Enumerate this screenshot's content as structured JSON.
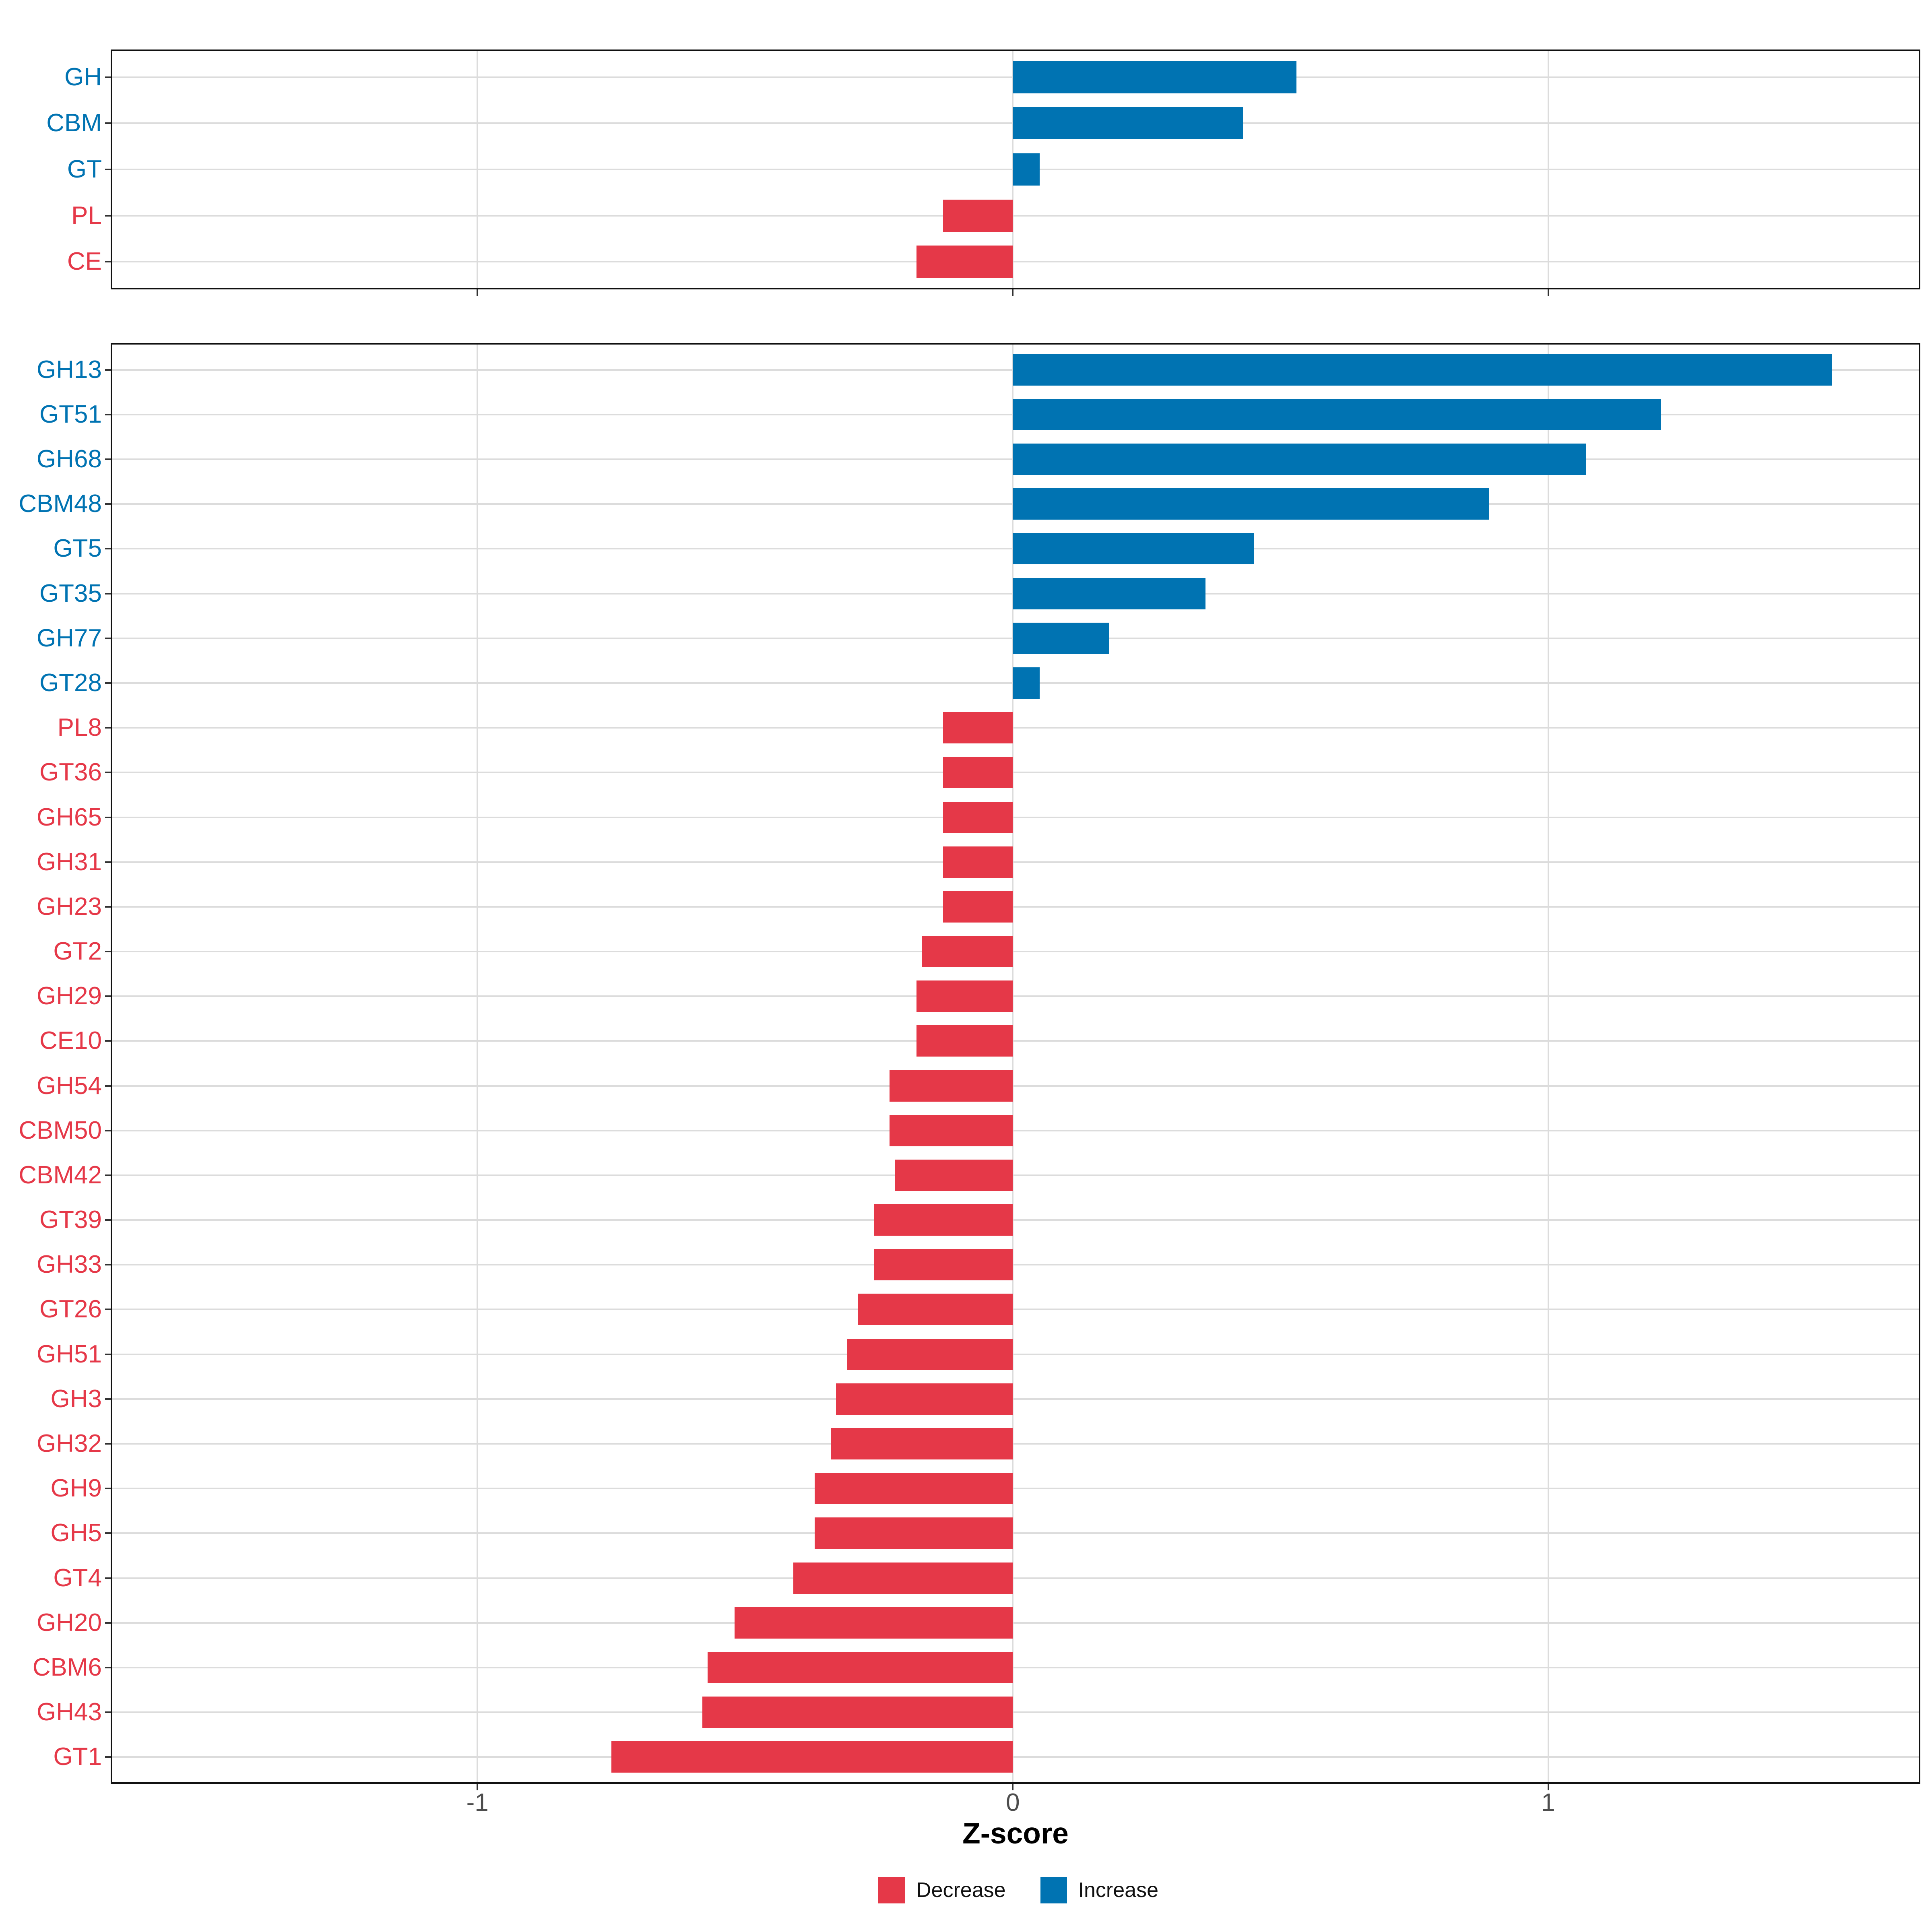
{
  "figure": {
    "x_axis": {
      "label": "Z-score",
      "tick_labels": [
        "-1",
        "0",
        "1"
      ],
      "tick_values": [
        -1,
        0,
        1
      ],
      "min": -1.685,
      "max": 1.695
    },
    "legend": {
      "position": "bottom",
      "items": [
        {
          "label": "Decrease",
          "key": "decrease"
        },
        {
          "label": "Increase",
          "key": "increase"
        }
      ]
    },
    "colors": {
      "decrease": "#E53848",
      "increase": "#0073B2",
      "grid": "#DCDCDC",
      "border": "#111111",
      "tick": "#333333",
      "axis_text": "#4D4D4D",
      "title_text": "#000000"
    }
  },
  "chart_data": [
    {
      "type": "bar",
      "orientation": "horizontal",
      "panel": "top",
      "title": "",
      "xlabel": "Z-score",
      "ylabel": "",
      "xlim": [
        -1.685,
        1.695
      ],
      "xticks": [
        -1,
        0,
        1
      ],
      "grid": true,
      "legend_position": "bottom",
      "categories": [
        "GH",
        "CBM",
        "GT",
        "PL",
        "CE"
      ],
      "values": [
        0.53,
        0.43,
        0.05,
        -0.13,
        -0.18
      ]
    },
    {
      "type": "bar",
      "orientation": "horizontal",
      "panel": "bottom",
      "title": "",
      "xlabel": "Z-score",
      "ylabel": "",
      "xlim": [
        -1.685,
        1.695
      ],
      "xticks": [
        -1,
        0,
        1
      ],
      "grid": true,
      "legend_position": "bottom",
      "categories": [
        "GH13",
        "GT51",
        "GH68",
        "CBM48",
        "GT5",
        "GT35",
        "GH77",
        "GT28",
        "PL8",
        "GT36",
        "GH65",
        "GH31",
        "GH23",
        "GT2",
        "GH29",
        "CE10",
        "GH54",
        "CBM50",
        "CBM42",
        "GT39",
        "GH33",
        "GT26",
        "GH51",
        "GH3",
        "GH32",
        "GH9",
        "GH5",
        "GT4",
        "GH20",
        "CBM6",
        "GH43",
        "GT1"
      ],
      "values": [
        1.53,
        1.21,
        1.07,
        0.89,
        0.45,
        0.36,
        0.18,
        0.05,
        -0.13,
        -0.13,
        -0.13,
        -0.13,
        -0.13,
        -0.17,
        -0.18,
        -0.18,
        -0.23,
        -0.23,
        -0.22,
        -0.26,
        -0.26,
        -0.29,
        -0.31,
        -0.33,
        -0.34,
        -0.37,
        -0.37,
        -0.41,
        -0.52,
        -0.57,
        -0.58,
        -0.75
      ]
    }
  ]
}
